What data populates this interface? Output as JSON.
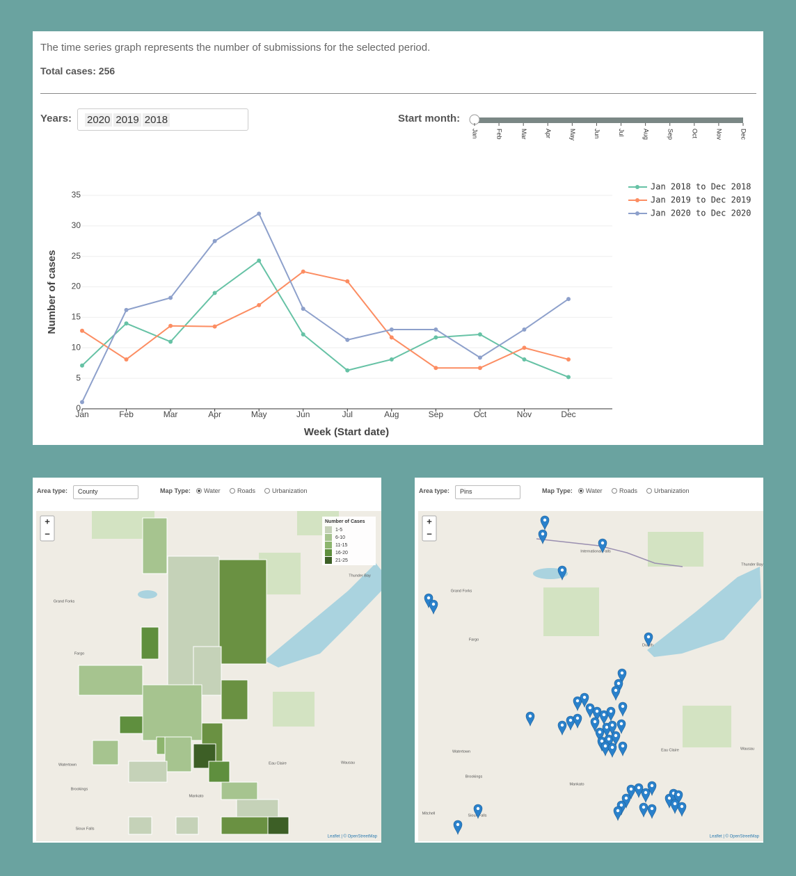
{
  "intro": {
    "description": "The time series graph represents the number of submissions for the selected period.",
    "total_label": "Total cases:",
    "total_value": 256
  },
  "filters": {
    "years_label": "Years:",
    "years": [
      2020,
      2019,
      2018
    ],
    "start_month_label": "Start month:"
  },
  "chart_data": {
    "type": "line",
    "x_label": "Week (Start date)",
    "y_label": "Number of cases",
    "categories": [
      "Jan",
      "Feb",
      "Mar",
      "Apr",
      "May",
      "Jun",
      "Jul",
      "Aug",
      "Sep",
      "Oct",
      "Nov",
      "Dec"
    ],
    "series": [
      {
        "name": "Jan 2018 to Dec 2018",
        "color": "#66c2a5",
        "values": [
          7.1,
          14,
          11,
          19,
          24.3,
          12.2,
          6.3,
          8.1,
          11.7,
          12.2,
          8.1,
          5.2
        ]
      },
      {
        "name": "Jan 2019 to Dec 2019",
        "color": "#fc8d62",
        "values": [
          12.8,
          8.1,
          13.6,
          13.5,
          17,
          22.5,
          20.9,
          11.7,
          6.7,
          6.7,
          10,
          8.1
        ]
      },
      {
        "name": "Jan 2020 to Dec 2020",
        "color": "#8da0cb",
        "values": [
          1.1,
          16.2,
          18.2,
          27.5,
          32,
          16.4,
          11.3,
          13,
          13,
          8.4,
          13,
          18
        ]
      }
    ],
    "ylim": [
      0,
      35
    ],
    "yticks": [
      0,
      5,
      10,
      15,
      20,
      25,
      30,
      35
    ],
    "grid": true,
    "legend": "top-right"
  },
  "maps": [
    {
      "area_type_label": "Area type:",
      "area_type": "County",
      "map_type_label": "Map Type:",
      "map_types": [
        {
          "label": "Water",
          "checked": true
        },
        {
          "label": "Roads",
          "checked": false
        },
        {
          "label": "Urbanization",
          "checked": false
        }
      ],
      "zoom": [
        "+",
        "−"
      ],
      "legend": {
        "title": "Number of Cases",
        "classes": [
          {
            "label": "1-5",
            "color": "#c5d2b8"
          },
          {
            "label": "6-10",
            "color": "#a6c48f"
          },
          {
            "label": "11-15",
            "color": "#8db56e"
          },
          {
            "label": "16-20",
            "color": "#5f8f3e"
          },
          {
            "label": "21-25",
            "color": "#3d5f26"
          }
        ]
      },
      "places": [
        "Grand Forks",
        "Fargo",
        "Watertown",
        "Brookings",
        "Sioux Falls",
        "Eau Claire",
        "Wausau",
        "Thunder Bay",
        "Mankato"
      ],
      "attribution": "Leaflet | © OpenStreetMap"
    },
    {
      "area_type_label": "Area type:",
      "area_type": "Pins",
      "map_type_label": "Map Type:",
      "map_types": [
        {
          "label": "Water",
          "checked": true
        },
        {
          "label": "Roads",
          "checked": false
        },
        {
          "label": "Urbanization",
          "checked": false
        }
      ],
      "zoom": [
        "+",
        "−"
      ],
      "places": [
        "Grand Forks",
        "Fargo",
        "Watertown",
        "Brookings",
        "Sioux Falls",
        "Mitchell",
        "Eau Claire",
        "Wausau",
        "Thunder Bay",
        "Duluth",
        "Mankato",
        "International Falls"
      ],
      "attribution": "Leaflet | © OpenStreetMap"
    }
  ]
}
